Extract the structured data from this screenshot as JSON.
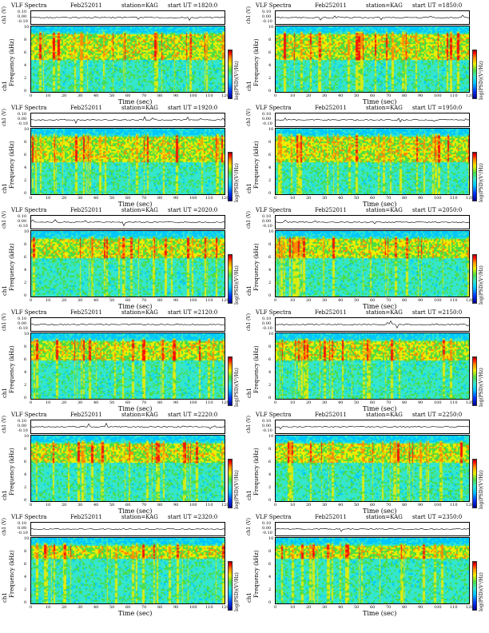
{
  "colors": {
    "spectrum_scale": [
      "#00008b",
      "#0033ff",
      "#00c8ff",
      "#33e6cc",
      "#4cdd44",
      "#eeee00",
      "#ff8800",
      "#ff0000",
      "#8b0000"
    ],
    "background_band": "#33ccee",
    "waveform": "#000000"
  },
  "common": {
    "title": "VLF Spectra",
    "date": "Feb252011",
    "station": "station=KAG",
    "ylabel_channel": "ch1",
    "ylabel_freq": "Frequency (kHz)",
    "wave_label": "ch1 (V)",
    "xlabel": "Time (sec)",
    "colorbar_label": "log(PSD)(V²/Hz)",
    "x_ticks": [
      "0",
      "10",
      "20",
      "30",
      "40",
      "50",
      "60",
      "70",
      "80",
      "90",
      "100",
      "110",
      "120"
    ],
    "y_ticks": [
      "0",
      "2",
      "4",
      "6",
      "8",
      "10"
    ],
    "wave_ticks": [
      "0.10",
      "0.00",
      "-0.10"
    ]
  },
  "chart_data": [
    {
      "type": "heatmap",
      "title": "VLF Spectra",
      "subtitle": "start  UT =1820:0",
      "xlabel": "Time (sec)",
      "ylabel": "Frequency (kHz)",
      "xlim": [
        0,
        120
      ],
      "ylim": [
        0,
        10
      ],
      "strong_band_khz": [
        5,
        9
      ]
    },
    {
      "type": "heatmap",
      "title": "VLF Spectra",
      "subtitle": "start  UT =1850:0",
      "xlabel": "Time (sec)",
      "ylabel": "Frequency (kHz)",
      "xlim": [
        0,
        120
      ],
      "ylim": [
        0,
        10
      ],
      "strong_band_khz": [
        5,
        9
      ]
    },
    {
      "type": "heatmap",
      "title": "VLF Spectra",
      "subtitle": "start  UT =1920:0",
      "xlabel": "Time (sec)",
      "ylabel": "Frequency (kHz)",
      "xlim": [
        0,
        120
      ],
      "ylim": [
        0,
        10
      ],
      "strong_band_khz": [
        5,
        9
      ]
    },
    {
      "type": "heatmap",
      "title": "VLF Spectra",
      "subtitle": "start  UT =1950:0",
      "xlabel": "Time (sec)",
      "ylabel": "Frequency (kHz)",
      "xlim": [
        0,
        120
      ],
      "ylim": [
        0,
        10
      ],
      "strong_band_khz": [
        5,
        9
      ]
    },
    {
      "type": "heatmap",
      "title": "VLF Spectra",
      "subtitle": "start  UT =2020:0",
      "xlabel": "Time (sec)",
      "ylabel": "Frequency (kHz)",
      "xlim": [
        0,
        120
      ],
      "ylim": [
        0,
        10
      ],
      "strong_band_khz": [
        6,
        9
      ]
    },
    {
      "type": "heatmap",
      "title": "VLF Spectra",
      "subtitle": "start  UT =2050:0",
      "xlabel": "Time (sec)",
      "ylabel": "Frequency (kHz)",
      "xlim": [
        0,
        120
      ],
      "ylim": [
        0,
        10
      ],
      "strong_band_khz": [
        6,
        9
      ]
    },
    {
      "type": "heatmap",
      "title": "VLF Spectra",
      "subtitle": "start  UT =2120:0",
      "xlabel": "Time (sec)",
      "ylabel": "Frequency (kHz)",
      "xlim": [
        0,
        120
      ],
      "ylim": [
        0,
        10
      ],
      "strong_band_khz": [
        6,
        9
      ]
    },
    {
      "type": "heatmap",
      "title": "VLF Spectra",
      "subtitle": "start  UT =2150:0",
      "xlabel": "Time (sec)",
      "ylabel": "Frequency (kHz)",
      "xlim": [
        0,
        120
      ],
      "ylim": [
        0,
        10
      ],
      "strong_band_khz": [
        6,
        9
      ]
    },
    {
      "type": "heatmap",
      "title": "VLF Spectra",
      "subtitle": "start  UT =2220:0",
      "xlabel": "Time (sec)",
      "ylabel": "Frequency (kHz)",
      "xlim": [
        0,
        120
      ],
      "ylim": [
        0,
        10
      ],
      "strong_band_khz": [
        6,
        9
      ]
    },
    {
      "type": "heatmap",
      "title": "VLF Spectra",
      "subtitle": "start  UT =2250:0",
      "xlabel": "Time (sec)",
      "ylabel": "Frequency (kHz)",
      "xlim": [
        0,
        120
      ],
      "ylim": [
        0,
        10
      ],
      "strong_band_khz": [
        6,
        9
      ]
    },
    {
      "type": "heatmap",
      "title": "VLF Spectra",
      "subtitle": "start  UT =2320:0",
      "xlabel": "Time (sec)",
      "ylabel": "Frequency (kHz)",
      "xlim": [
        0,
        120
      ],
      "ylim": [
        0,
        10
      ],
      "strong_band_khz": [
        7,
        9
      ]
    },
    {
      "type": "heatmap",
      "title": "VLF Spectra",
      "subtitle": "start  UT =2350:0",
      "xlabel": "Time (sec)",
      "ylabel": "Frequency (kHz)",
      "xlim": [
        0,
        120
      ],
      "ylim": [
        0,
        10
      ],
      "strong_band_khz": [
        7,
        9
      ]
    }
  ]
}
